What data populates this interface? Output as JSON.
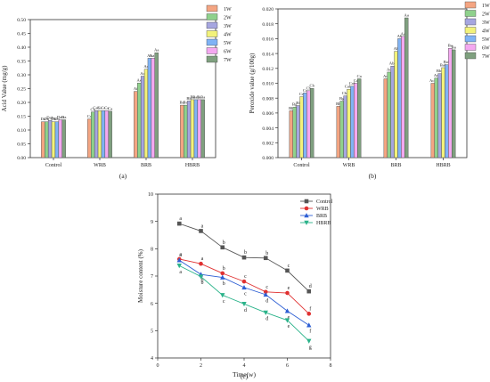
{
  "chart_data": [
    {
      "panel": "(a)",
      "type": "bar",
      "ylabel": "Acid Value (mg/g)",
      "ylim": [
        0,
        0.5
      ],
      "yticks": [
        "0.00",
        "0.05",
        "0.10",
        "0.15",
        "0.20",
        "0.25",
        "0.30",
        "0.35",
        "0.40",
        "0.45",
        "0.50"
      ],
      "categories": [
        "Control",
        "WRB",
        "BRB",
        "HBRB"
      ],
      "series": [
        {
          "name": "1W",
          "color": "#f4a582",
          "values": [
            0.13,
            0.14,
            0.24,
            0.19
          ]
        },
        {
          "name": "2W",
          "color": "#8fd18c",
          "values": [
            0.13,
            0.165,
            0.27,
            0.19
          ]
        },
        {
          "name": "3W",
          "color": "#a6a6e0",
          "values": [
            0.135,
            0.17,
            0.295,
            0.205
          ]
        },
        {
          "name": "4W",
          "color": "#f2f27a",
          "values": [
            0.13,
            0.17,
            0.32,
            0.21
          ]
        },
        {
          "name": "5W",
          "color": "#7fb3f5",
          "values": [
            0.13,
            0.17,
            0.36,
            0.21
          ]
        },
        {
          "name": "6W",
          "color": "#f4a8f0",
          "values": [
            0.137,
            0.17,
            0.36,
            0.21
          ]
        },
        {
          "name": "7W",
          "color": "#7fa07f",
          "values": [
            0.137,
            0.168,
            0.38,
            0.21
          ]
        }
      ],
      "labels": [
        [
          "Da",
          "Db",
          "Dab",
          "Db",
          "Db",
          "Dab",
          "Da"
        ],
        [
          "Cc",
          "Cb",
          "Cab",
          "Ca",
          "Ca",
          "Ca",
          "Ca"
        ],
        [
          "Af",
          "Ae",
          "Ad",
          "Ac",
          "Ab",
          "Aab",
          "Aa"
        ],
        [
          "Bd",
          "Bc",
          "Bb",
          "Ba",
          "Bab",
          "Ba",
          "Ba"
        ]
      ],
      "legend": "top-right"
    },
    {
      "panel": "(b)",
      "type": "bar",
      "ylabel": "Peroxide value (g/100g)",
      "ylim": [
        0,
        0.02
      ],
      "yticks": [
        "0.000",
        "0.002",
        "0.004",
        "0.006",
        "0.008",
        "0.010",
        "0.012",
        "0.014",
        "0.016",
        "0.018",
        "0.020"
      ],
      "categories": [
        "Control",
        "WRB",
        "BRB",
        "HBRB"
      ],
      "series": [
        {
          "name": "1W",
          "color": "#f4a582",
          "values": [
            0.0063,
            0.0069,
            0.0106,
            0.01
          ]
        },
        {
          "name": "2W",
          "color": "#8fd18c",
          "values": [
            0.0068,
            0.0076,
            0.0115,
            0.0107
          ]
        },
        {
          "name": "3W",
          "color": "#a6a6e0",
          "values": [
            0.007,
            0.0083,
            0.0123,
            0.0113
          ]
        },
        {
          "name": "4W",
          "color": "#f2f27a",
          "values": [
            0.0082,
            0.0092,
            0.0143,
            0.0121
          ]
        },
        {
          "name": "5W",
          "color": "#7fb3f5",
          "values": [
            0.0087,
            0.0096,
            0.016,
            0.0125
          ]
        },
        {
          "name": "6W",
          "color": "#f4a8f0",
          "values": [
            0.009,
            0.01,
            0.0163,
            0.0147
          ]
        },
        {
          "name": "7W",
          "color": "#7fa07f",
          "values": [
            0.0093,
            0.0106,
            0.0188,
            0.0145
          ]
        }
      ],
      "labels": [
        [
          "Bh",
          "Bg",
          "Bf",
          "Cd",
          "Cc",
          "Cb",
          "Cb"
        ],
        [
          "Bh",
          "Bg",
          "Cbc",
          "Cabc",
          "Cab",
          "Ca",
          "Ca"
        ],
        [
          "Ad",
          "Ac",
          "Abc",
          "Ab",
          "Ab",
          "Aa",
          "Aa"
        ],
        [
          "Acd",
          "Ad",
          "Bbc",
          "Bab",
          "Bab",
          "Ba",
          "Ba"
        ]
      ],
      "legend": "top-right"
    },
    {
      "panel": "(c)",
      "type": "line",
      "xlabel": "Time(w)",
      "ylabel": "Moisture content (%)",
      "xlim": [
        0,
        8
      ],
      "ylim": [
        4,
        10
      ],
      "xticks": [
        0,
        2,
        4,
        6,
        8
      ],
      "yticks": [
        4,
        5,
        6,
        7,
        8,
        9,
        10
      ],
      "x": [
        1,
        2,
        3,
        4,
        5,
        6,
        7
      ],
      "series": [
        {
          "name": "Control",
          "color": "#555555",
          "marker": "square",
          "values": [
            8.92,
            8.65,
            8.05,
            7.68,
            7.66,
            7.2,
            6.44
          ],
          "labels": [
            "a",
            "a",
            "b",
            "b",
            "b",
            "c",
            "d"
          ]
        },
        {
          "name": "WRB",
          "color": "#e03030",
          "marker": "circle",
          "values": [
            7.62,
            7.45,
            7.1,
            6.8,
            6.42,
            6.38,
            5.62
          ],
          "labels": [
            "a",
            "a",
            "b",
            "c",
            "c",
            "e",
            "f"
          ]
        },
        {
          "name": "BRB",
          "color": "#2e5fd4",
          "marker": "triangle-up",
          "values": [
            7.58,
            7.06,
            6.95,
            6.58,
            6.32,
            5.72,
            5.2
          ],
          "labels": [
            "a",
            "b",
            "b",
            "c",
            "d",
            "e",
            "f"
          ]
        },
        {
          "name": "HBRB",
          "color": "#2bb38a",
          "marker": "triangle-down",
          "values": [
            7.38,
            6.98,
            6.3,
            5.98,
            5.66,
            5.38,
            4.62
          ],
          "labels": [
            "a",
            "b",
            "c",
            "d",
            "d",
            "e",
            "g"
          ]
        }
      ],
      "legend": "top-right"
    }
  ]
}
